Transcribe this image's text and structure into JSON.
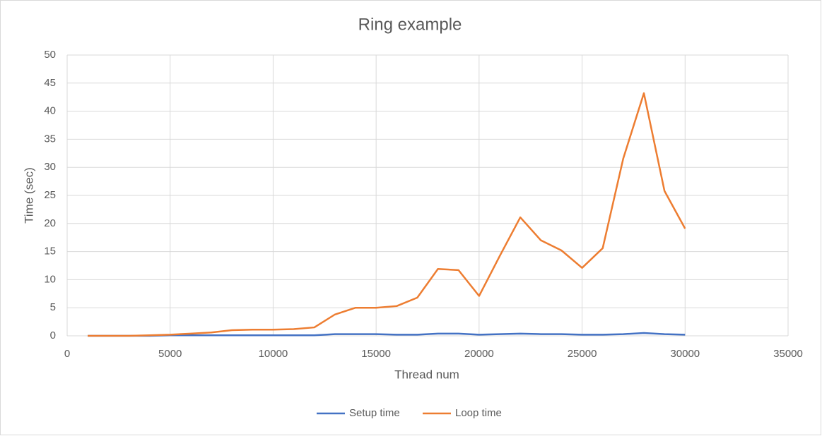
{
  "chart_data": {
    "type": "line",
    "title": "Ring example",
    "x_label": "Thread num",
    "y_label": "Time (sec)",
    "x": [
      1000,
      2000,
      3000,
      4000,
      5000,
      6000,
      7000,
      8000,
      9000,
      10000,
      11000,
      12000,
      13000,
      14000,
      15000,
      16000,
      17000,
      18000,
      19000,
      20000,
      21000,
      22000,
      23000,
      24000,
      25000,
      26000,
      27000,
      28000,
      29000,
      30000
    ],
    "series": [
      {
        "name": "Setup time",
        "color": "#4472c4",
        "values": [
          0,
          0,
          0,
          0,
          0.1,
          0.1,
          0.1,
          0.1,
          0.1,
          0.1,
          0.1,
          0.1,
          0.3,
          0.3,
          0.3,
          0.2,
          0.2,
          0.4,
          0.4,
          0.2,
          0.3,
          0.4,
          0.3,
          0.3,
          0.2,
          0.2,
          0.3,
          0.5,
          0.3,
          0.2
        ]
      },
      {
        "name": "Loop time",
        "color": "#ed7d31",
        "values": [
          0,
          0,
          0,
          0.1,
          0.2,
          0.4,
          0.6,
          1.0,
          1.1,
          1.1,
          1.2,
          1.5,
          3.8,
          5.0,
          5.0,
          5.3,
          6.8,
          11.9,
          11.7,
          7.1,
          14.2,
          21.1,
          17.0,
          15.2,
          12.1,
          15.6,
          31.6,
          43.2,
          25.8,
          19.1
        ]
      }
    ],
    "xlim": [
      0,
      35000
    ],
    "xticks": [
      0,
      5000,
      10000,
      15000,
      20000,
      25000,
      30000,
      35000
    ],
    "ylim": [
      0,
      50
    ],
    "yticks": [
      0,
      5,
      10,
      15,
      20,
      25,
      30,
      35,
      40,
      45,
      50
    ],
    "grid": true,
    "legend": "bottom"
  }
}
